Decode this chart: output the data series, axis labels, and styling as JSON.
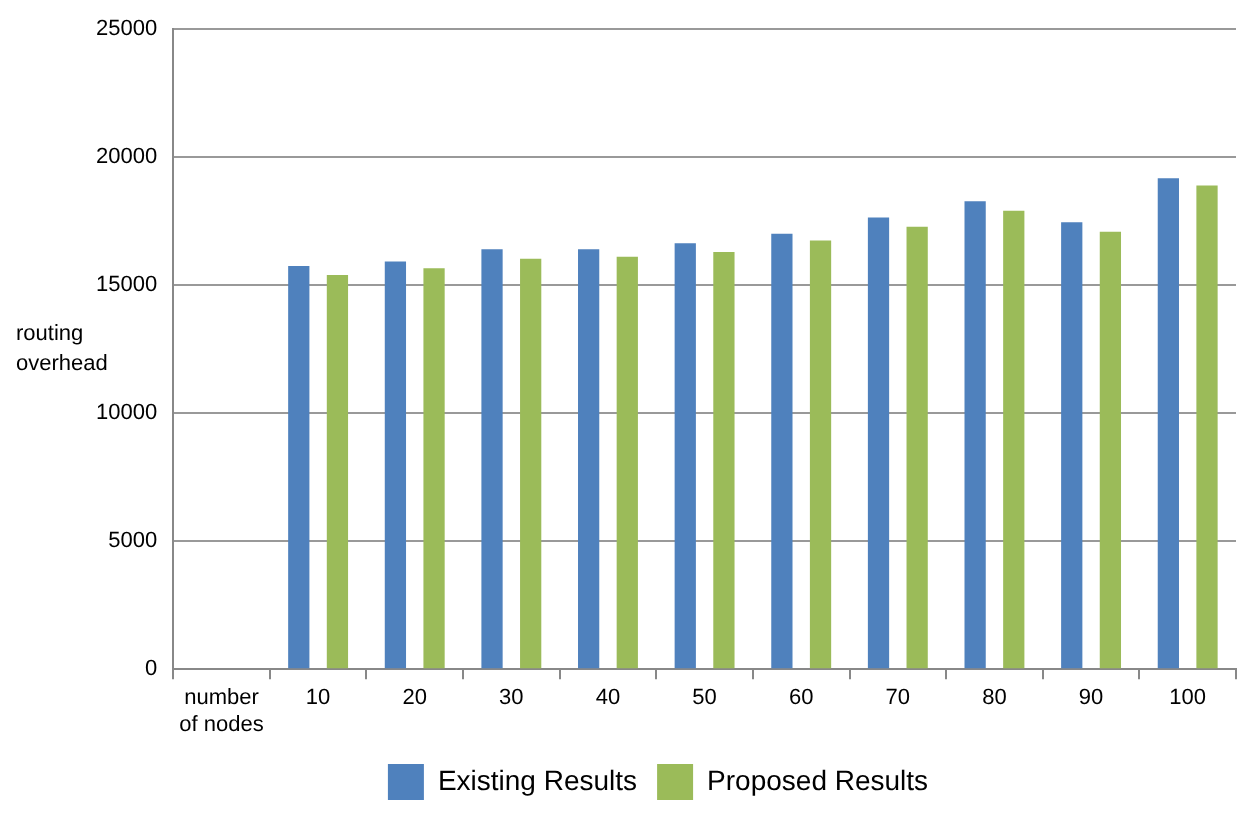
{
  "chart_data": {
    "type": "bar",
    "ylabel": "routing overhead",
    "categories": [
      "number of nodes",
      "10",
      "20",
      "30",
      "40",
      "50",
      "60",
      "70",
      "80",
      "90",
      "100"
    ],
    "series": [
      {
        "name": "Existing Results",
        "color": "#4f81bd",
        "values": [
          null,
          15750,
          15930,
          16400,
          16400,
          16640,
          17010,
          17640,
          18280,
          17460,
          19180
        ]
      },
      {
        "name": "Proposed Results",
        "color": "#9bbb59",
        "values": [
          null,
          15400,
          15660,
          16030,
          16110,
          16300,
          16750,
          17280,
          17910,
          17090,
          18890
        ]
      }
    ],
    "ylim": [
      0,
      25000
    ],
    "yticks": [
      0,
      5000,
      10000,
      15000,
      20000,
      25000
    ],
    "grid": "y",
    "legend": "bottom"
  }
}
